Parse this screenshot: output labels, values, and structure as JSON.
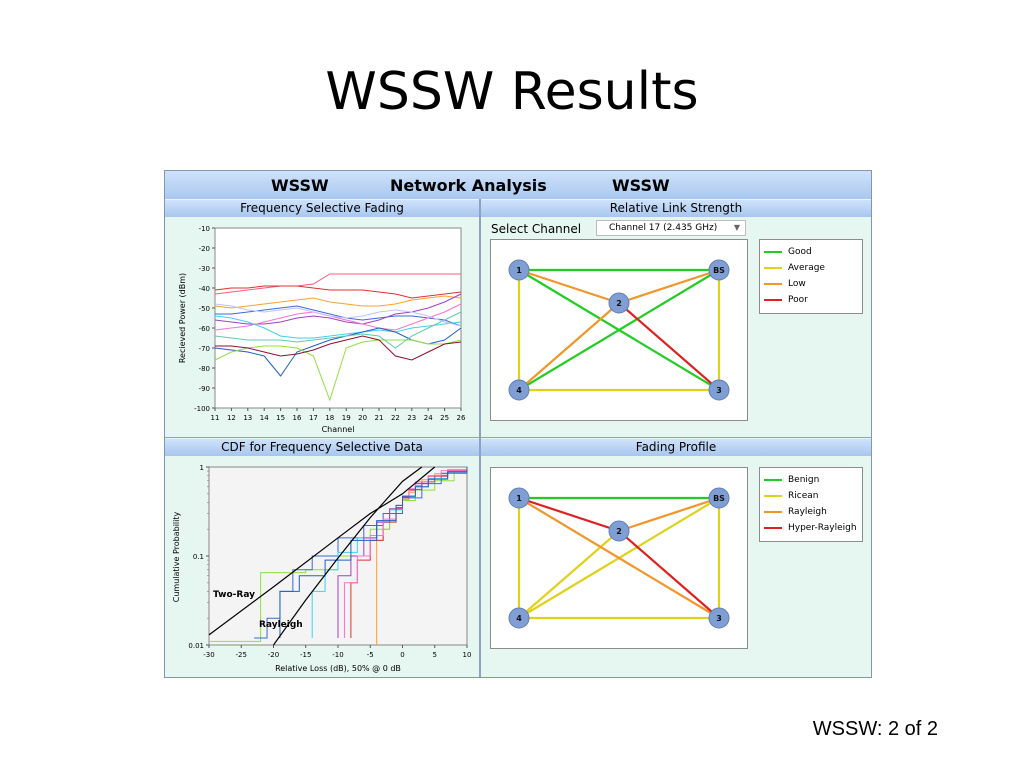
{
  "slide": {
    "title": "WSSW Results",
    "footer": "WSSW: 2 of 2"
  },
  "app": {
    "header": {
      "left": "WSSW",
      "center": "Network Analysis",
      "right": "WSSW"
    },
    "panels": {
      "fsf_title": "Frequency Selective Fading",
      "rls_title": "Relative Link Strength",
      "cdf_title": "CDF for Frequency Selective Data",
      "fp_title": "Fading Profile"
    },
    "select_channel": {
      "label": "Select Channel",
      "value": "Channel 17 (2.435 GHz)"
    },
    "rls_legend": [
      {
        "label": "Good",
        "color": "#22cc22"
      },
      {
        "label": "Average",
        "color": "#e0d21a"
      },
      {
        "label": "Low",
        "color": "#f0962a"
      },
      {
        "label": "Poor",
        "color": "#dd2020"
      }
    ],
    "fp_legend": [
      {
        "label": "Benign",
        "color": "#22cc22"
      },
      {
        "label": "Ricean",
        "color": "#e0d21a"
      },
      {
        "label": "Rayleigh",
        "color": "#f0962a"
      },
      {
        "label": "Hyper-Rayleigh",
        "color": "#dd2020"
      }
    ],
    "nodes": {
      "n1": "1",
      "n2": "2",
      "n3": "3",
      "n4": "4",
      "bs": "BS"
    },
    "rls_links": [
      {
        "from": "1",
        "to": "BS",
        "quality": "Good"
      },
      {
        "from": "1",
        "to": "3",
        "quality": "Good"
      },
      {
        "from": "BS",
        "to": "4",
        "quality": "Good"
      },
      {
        "from": "1",
        "to": "4",
        "quality": "Average"
      },
      {
        "from": "4",
        "to": "3",
        "quality": "Average"
      },
      {
        "from": "BS",
        "to": "3",
        "quality": "Average"
      },
      {
        "from": "1",
        "to": "2",
        "quality": "Low"
      },
      {
        "from": "2",
        "to": "BS",
        "quality": "Low"
      },
      {
        "from": "2",
        "to": "4",
        "quality": "Low"
      },
      {
        "from": "2",
        "to": "3",
        "quality": "Poor"
      }
    ],
    "fp_links": [
      {
        "from": "1",
        "to": "BS",
        "quality": "Benign"
      },
      {
        "from": "1",
        "to": "4",
        "quality": "Ricean"
      },
      {
        "from": "4",
        "to": "3",
        "quality": "Ricean"
      },
      {
        "from": "BS",
        "to": "3",
        "quality": "Ricean"
      },
      {
        "from": "4",
        "to": "2",
        "quality": "Ricean"
      },
      {
        "from": "4",
        "to": "BS",
        "quality": "Ricean"
      },
      {
        "from": "2",
        "to": "BS",
        "quality": "Rayleigh"
      },
      {
        "from": "1",
        "to": "3",
        "quality": "Rayleigh"
      },
      {
        "from": "1",
        "to": "2",
        "quality": "Hyper-Rayleigh"
      },
      {
        "from": "2",
        "to": "3",
        "quality": "Hyper-Rayleigh"
      }
    ]
  },
  "chart_data": [
    {
      "type": "line",
      "title": "",
      "xlabel": "Channel",
      "ylabel": "Recieved Power (dBm)",
      "xlim": [
        11,
        26
      ],
      "ylim": [
        -100,
        -10
      ],
      "x_ticks": [
        "11",
        "12",
        "13",
        "14",
        "15",
        "16",
        "17",
        "18",
        "19",
        "20",
        "21",
        "22",
        "23",
        "24",
        "25",
        "26"
      ],
      "y_ticks": [
        "-10",
        "-20",
        "-30",
        "-40",
        "-50",
        "-60",
        "-70",
        "-80",
        "-90",
        "-100"
      ],
      "x": [
        11,
        12,
        13,
        14,
        15,
        16,
        17,
        18,
        19,
        20,
        21,
        22,
        23,
        24,
        25,
        26
      ],
      "series": [
        {
          "color": "#ff5a7a",
          "values": [
            -43,
            -42,
            -41,
            -40,
            -39,
            -39,
            -38,
            -33,
            -33,
            -33,
            -33,
            -33,
            -33,
            -33,
            -33,
            -33
          ]
        },
        {
          "color": "#e03030",
          "values": [
            -41,
            -40,
            -40,
            -39,
            -39,
            -39,
            -40,
            -41,
            -41,
            -41,
            -42,
            -43,
            -45,
            -44,
            -43,
            -42
          ]
        },
        {
          "color": "#ffa030",
          "values": [
            -49,
            -50,
            -49,
            -48,
            -47,
            -46,
            -45,
            -47,
            -48,
            -49,
            -49,
            -48,
            -46,
            -45,
            -44,
            -45
          ]
        },
        {
          "color": "#3a6ad8",
          "values": [
            -53,
            -53,
            -52,
            -51,
            -50,
            -49,
            -51,
            -53,
            -55,
            -56,
            -55,
            -54,
            -54,
            -55,
            -56,
            -59
          ]
        },
        {
          "color": "#a040c8",
          "values": [
            -56,
            -57,
            -58,
            -58,
            -57,
            -55,
            -54,
            -55,
            -57,
            -58,
            -56,
            -53,
            -52,
            -50,
            -47,
            -43
          ]
        },
        {
          "color": "#ff70d0",
          "values": [
            -61,
            -60,
            -59,
            -57,
            -55,
            -53,
            -52,
            -54,
            -56,
            -58,
            -60,
            -61,
            -58,
            -55,
            -52,
            -48
          ]
        },
        {
          "color": "#40d0f0",
          "values": [
            -54,
            -55,
            -57,
            -60,
            -64,
            -65,
            -65,
            -64,
            -63,
            -62,
            -61,
            -62,
            -60,
            -59,
            -58,
            -57
          ]
        },
        {
          "color": "#2060c0",
          "values": [
            -70,
            -71,
            -72,
            -74,
            -84,
            -72,
            -69,
            -66,
            -64,
            -62,
            -60,
            -62,
            -66,
            -68,
            -66,
            -60
          ]
        },
        {
          "color": "#90e040",
          "values": [
            -76,
            -72,
            -70,
            -69,
            -69,
            -70,
            -74,
            -96,
            -70,
            -67,
            -66,
            -66,
            -66,
            -68,
            -68,
            -66
          ]
        },
        {
          "color": "#8a1030",
          "values": [
            -69,
            -69,
            -70,
            -72,
            -74,
            -73,
            -71,
            -68,
            -66,
            -64,
            -66,
            -74,
            -76,
            -72,
            -68,
            -67
          ]
        },
        {
          "color": "#60c8b0",
          "values": [
            -64,
            -65,
            -66,
            -66,
            -66,
            -67,
            -66,
            -65,
            -64,
            -63,
            -64,
            -70,
            -64,
            -60,
            -56,
            -52
          ]
        },
        {
          "color": "#c0c0ff",
          "values": [
            -48,
            -49,
            -51,
            -52,
            -51,
            -50,
            -52,
            -54,
            -55,
            -54,
            -52,
            -51,
            -52,
            -54,
            -57,
            -59
          ]
        }
      ]
    },
    {
      "type": "line",
      "title": "",
      "xlabel": "Relative Loss (dB), 50% @ 0 dB",
      "ylabel": "Cumulative Probability",
      "xlim": [
        -30,
        10
      ],
      "ylim": [
        0.01,
        1
      ],
      "y_scale": "log",
      "x_ticks": [
        "-30",
        "-25",
        "-20",
        "-15",
        "-10",
        "-5",
        "0",
        "5",
        "10"
      ],
      "y_ticks": [
        "0.01",
        "0.1",
        "1"
      ],
      "annotations": [
        "Two-Ray",
        "Rayleigh"
      ],
      "reference_series": [
        {
          "name": "Two-Ray",
          "color": "#000000",
          "x": [
            -30,
            -20,
            -10,
            -5,
            0,
            5
          ],
          "values": [
            0.013,
            0.045,
            0.16,
            0.3,
            0.5,
            1.0
          ]
        },
        {
          "name": "Rayleigh",
          "color": "#000000",
          "x": [
            -20,
            -15,
            -10,
            -5,
            0,
            3
          ],
          "values": [
            0.01,
            0.032,
            0.095,
            0.27,
            0.69,
            1.0
          ]
        }
      ],
      "series": [
        {
          "color": "#ff9a30",
          "x": [
            -4,
            -4,
            -3,
            -2,
            -1,
            0,
            1,
            2,
            3,
            5,
            7,
            10
          ],
          "values": [
            0.01,
            0.15,
            0.2,
            0.26,
            0.34,
            0.43,
            0.52,
            0.62,
            0.72,
            0.84,
            0.93,
            1.0
          ]
        },
        {
          "color": "#90e040",
          "x": [
            -30,
            -22,
            -22,
            -15,
            -10,
            -5,
            -2,
            0,
            2,
            5,
            8,
            10
          ],
          "values": [
            0.011,
            0.03,
            0.065,
            0.07,
            0.1,
            0.2,
            0.3,
            0.42,
            0.55,
            0.7,
            0.88,
            1.0
          ]
        },
        {
          "color": "#3a6ad8",
          "x": [
            -23,
            -21,
            -19,
            -17,
            -14,
            -10,
            -6,
            -3,
            0,
            3,
            6,
            10
          ],
          "values": [
            0.012,
            0.02,
            0.04,
            0.07,
            0.1,
            0.16,
            0.22,
            0.3,
            0.45,
            0.65,
            0.85,
            1.0
          ]
        },
        {
          "color": "#40d0f0",
          "x": [
            -14,
            -14,
            -12,
            -10,
            -7,
            -4,
            -2,
            0,
            2,
            4,
            7,
            10
          ],
          "values": [
            0.012,
            0.04,
            0.07,
            0.11,
            0.16,
            0.24,
            0.33,
            0.46,
            0.6,
            0.74,
            0.9,
            1.0
          ]
        },
        {
          "color": "#e03030",
          "x": [
            -8,
            -8,
            -7,
            -5,
            -3,
            -1,
            0,
            1,
            2,
            4,
            7,
            10
          ],
          "values": [
            0.012,
            0.05,
            0.09,
            0.15,
            0.24,
            0.35,
            0.45,
            0.55,
            0.65,
            0.79,
            0.92,
            1.0
          ]
        },
        {
          "color": "#a040c8",
          "x": [
            -10,
            -10,
            -8,
            -6,
            -4,
            -2,
            0,
            1,
            3,
            5,
            7,
            10
          ],
          "values": [
            0.012,
            0.06,
            0.1,
            0.16,
            0.24,
            0.34,
            0.46,
            0.56,
            0.68,
            0.8,
            0.9,
            1.0
          ]
        },
        {
          "color": "#ff70d0",
          "x": [
            -9,
            -9,
            -7,
            -5,
            -3,
            -1,
            0,
            1,
            2,
            4,
            6,
            10
          ],
          "values": [
            0.012,
            0.05,
            0.1,
            0.17,
            0.26,
            0.37,
            0.47,
            0.57,
            0.68,
            0.8,
            0.91,
            1.0
          ]
        },
        {
          "color": "#2060c0",
          "x": [
            -19,
            -19,
            -16,
            -12,
            -8,
            -4,
            -1,
            0,
            2,
            4,
            7,
            10
          ],
          "values": [
            0.012,
            0.04,
            0.06,
            0.09,
            0.15,
            0.25,
            0.37,
            0.47,
            0.6,
            0.73,
            0.88,
            1.0
          ]
        }
      ]
    }
  ]
}
